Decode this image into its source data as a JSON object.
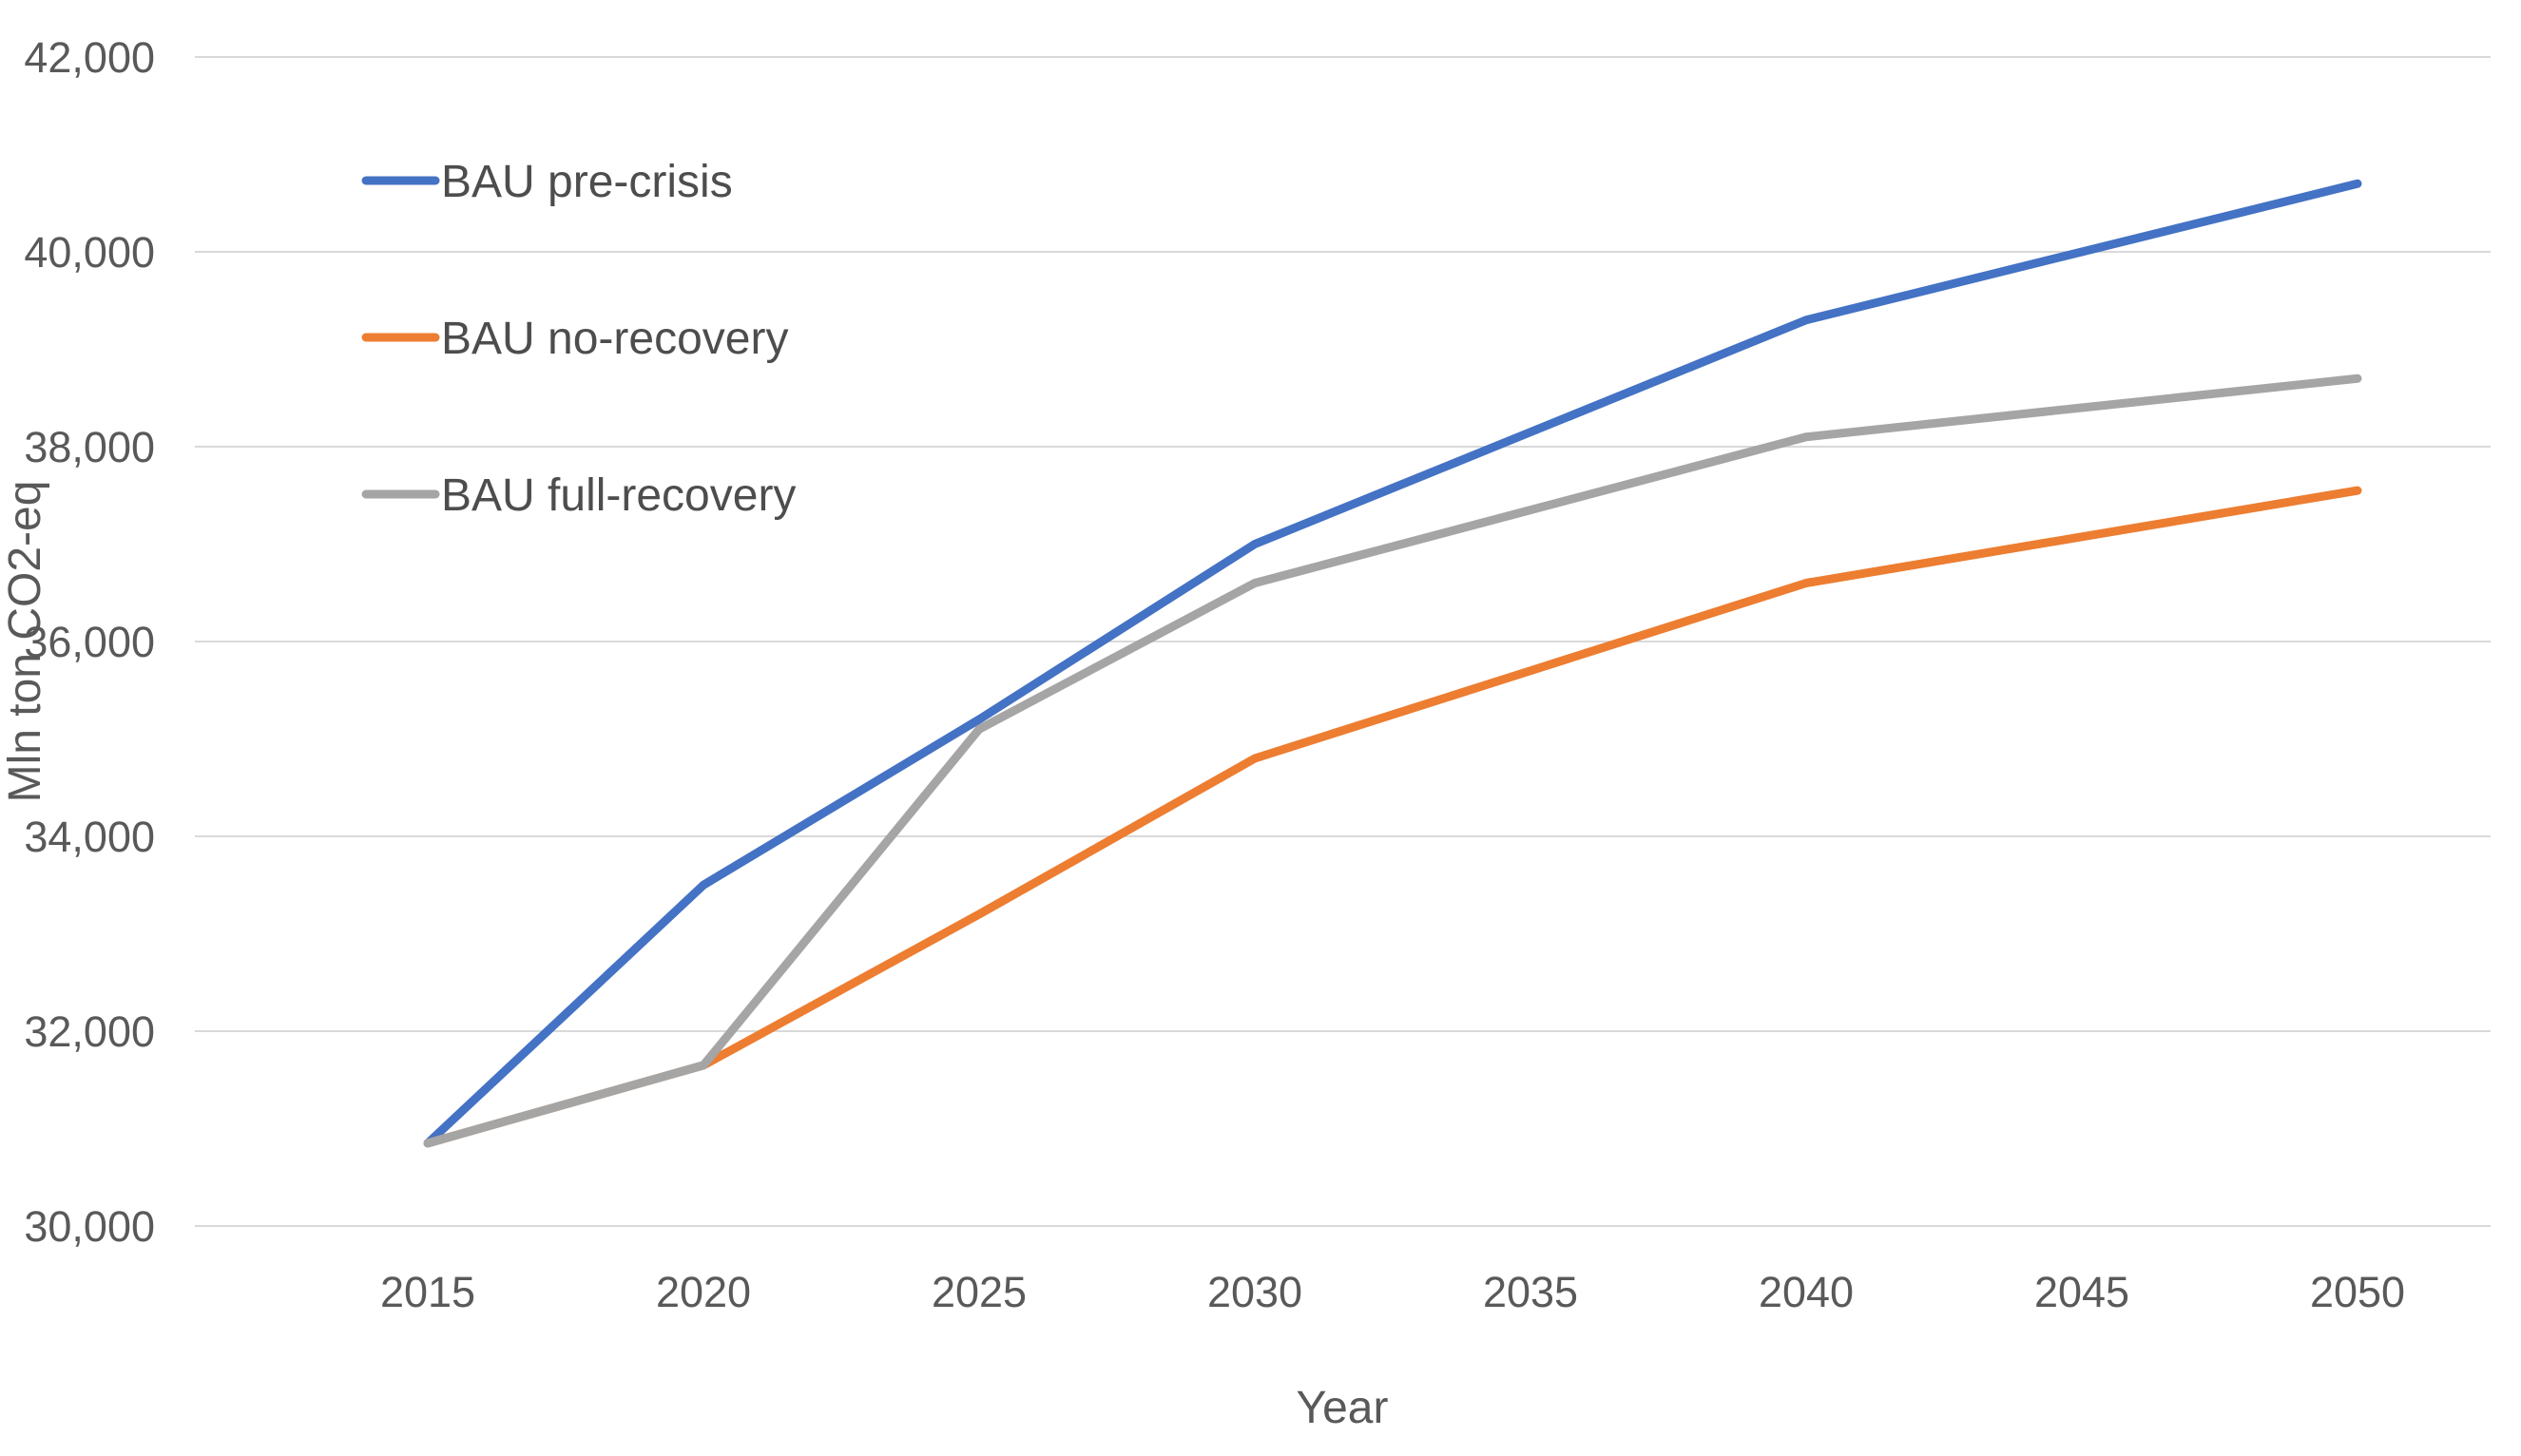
{
  "chart_data": {
    "type": "line",
    "title": "",
    "xlabel": "Year",
    "ylabel": "Mln ton CO2-eq",
    "x": [
      2015,
      2020,
      2025,
      2030,
      2035,
      2040,
      2045,
      2050
    ],
    "xtick_labels": [
      "2015",
      "2020",
      "2025",
      "2030",
      "2035",
      "2040",
      "2045",
      "2050"
    ],
    "series": [
      {
        "name": "BAU pre-crisis",
        "color": "#4472C4",
        "values": [
          30850,
          33500,
          35200,
          37000,
          38150,
          39300,
          40000,
          40700
        ]
      },
      {
        "name": "BAU no-recovery",
        "color": "#ED7D31",
        "values": [
          30850,
          31650,
          33200,
          34800,
          35700,
          36600,
          37075,
          37550
        ]
      },
      {
        "name": "BAU full-recovery",
        "color": "#A5A5A5",
        "values": [
          30850,
          31650,
          35100,
          36600,
          37350,
          38100,
          38400,
          38700
        ]
      }
    ],
    "ylim": [
      30000,
      42000
    ],
    "ytick_step": 2000,
    "ytick_values": [
      30000,
      32000,
      34000,
      36000,
      38000,
      40000,
      42000
    ],
    "ytick_labels": [
      "30,000",
      "32,000",
      "34,000",
      "36,000",
      "38,000",
      "40,000",
      "42,000"
    ],
    "grid": true,
    "legend_position": "left-inside",
    "styles": {
      "text_color": "#595959",
      "gridline_color": "#D9D9D9",
      "background": "#FFFFFF"
    }
  }
}
